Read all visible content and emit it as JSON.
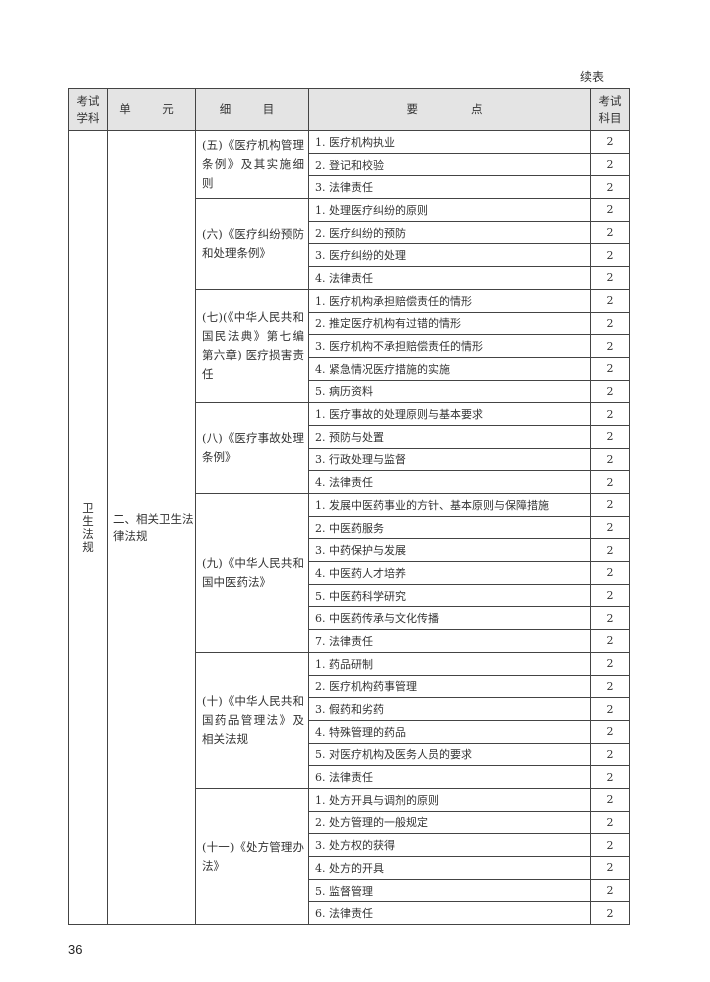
{
  "continued_label": "续表",
  "headers": [
    "考试\n学科",
    "单　元",
    "细　目",
    "要　　点",
    "考试\n科目"
  ],
  "subject": "卫\n生\n法\n规",
  "unit": "二、相关卫生法律法规",
  "groups": [
    {
      "item": "(五)《医疗机构管理条例》及其实施细则",
      "points": [
        "1. 医疗机构执业",
        "2. 登记和校验",
        "3. 法律责任"
      ]
    },
    {
      "item": "(六)《医疗纠纷预防和处理条例》",
      "points": [
        "1. 处理医疗纠纷的原则",
        "2. 医疗纠纷的预防",
        "3. 医疗纠纷的处理",
        "4. 法律责任"
      ]
    },
    {
      "item": "(七)(《中华人民共和国民法典》第七编第六章) 医疗损害责任",
      "points": [
        "1. 医疗机构承担赔偿责任的情形",
        "2. 推定医疗机构有过错的情形",
        "3. 医疗机构不承担赔偿责任的情形",
        "4. 紧急情况医疗措施的实施",
        "5. 病历资料"
      ]
    },
    {
      "item": "(八)《医疗事故处理条例》",
      "points": [
        "1. 医疗事故的处理原则与基本要求",
        "2. 预防与处置",
        "3. 行政处理与监督",
        "4. 法律责任"
      ]
    },
    {
      "item": "(九)《中华人民共和国中医药法》",
      "points": [
        "1. 发展中医药事业的方针、基本原则与保障措施",
        "2. 中医药服务",
        "3. 中药保护与发展",
        "4. 中医药人才培养",
        "5. 中医药科学研究",
        "6. 中医药传承与文化传播",
        "7. 法律责任"
      ]
    },
    {
      "item": "(十)《中华人民共和国药品管理法》及相关法规",
      "points": [
        "1. 药品研制",
        "2. 医疗机构药事管理",
        "3. 假药和劣药",
        "4. 特殊管理的药品",
        "5. 对医疗机构及医务人员的要求",
        "6. 法律责任"
      ]
    },
    {
      "item": "(十一)《处方管理办法》",
      "points": [
        "1. 处方开具与调剂的原则",
        "2. 处方管理的一般规定",
        "3. 处方权的获得",
        "4. 处方的开具",
        "5. 监督管理",
        "6. 法律责任"
      ]
    }
  ],
  "score": "2",
  "page_number": "36"
}
